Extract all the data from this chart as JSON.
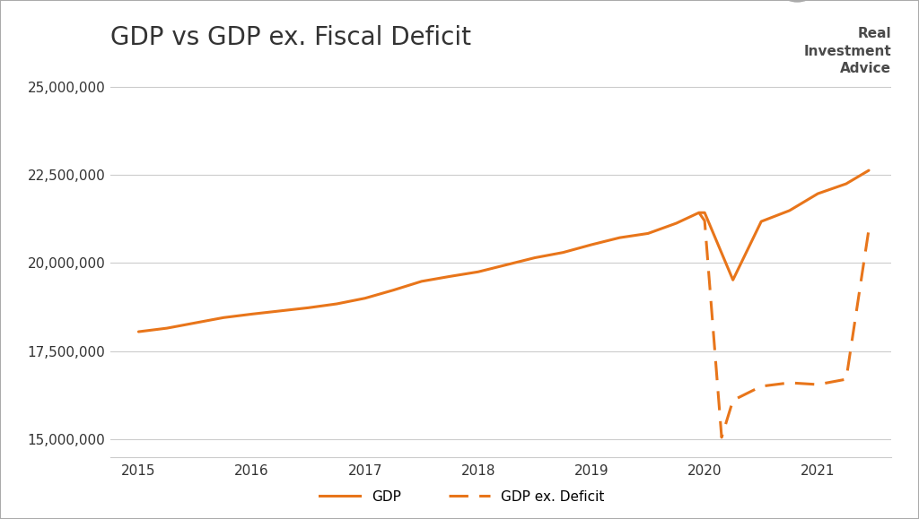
{
  "title": "GDP vs GDP ex. Fiscal Deficit",
  "line_color": "#E8751A",
  "background_color": "#FFFFFF",
  "grid_color": "#CCCCCC",
  "border_color": "#AAAAAA",
  "text_color": "#333333",
  "logo_text_color": "#555555",
  "ylim": [
    14500000,
    25700000
  ],
  "yticks": [
    15000000,
    17500000,
    20000000,
    22500000,
    25000000
  ],
  "xlim": [
    2014.75,
    2021.65
  ],
  "xticks": [
    2015,
    2016,
    2017,
    2018,
    2019,
    2020,
    2021
  ],
  "gdp_x": [
    2015.0,
    2015.25,
    2015.5,
    2015.75,
    2016.0,
    2016.25,
    2016.5,
    2016.75,
    2017.0,
    2017.25,
    2017.5,
    2017.75,
    2018.0,
    2018.25,
    2018.5,
    2018.75,
    2019.0,
    2019.25,
    2019.5,
    2019.75,
    2019.95,
    2020.0,
    2020.25,
    2020.5,
    2020.75,
    2021.0,
    2021.25,
    2021.45
  ],
  "gdp_y": [
    18050000,
    18150000,
    18300000,
    18450000,
    18550000,
    18640000,
    18730000,
    18840000,
    19000000,
    19230000,
    19480000,
    19620000,
    19750000,
    19950000,
    20150000,
    20300000,
    20520000,
    20720000,
    20840000,
    21130000,
    21430000,
    21430000,
    19520000,
    21180000,
    21490000,
    21970000,
    22250000,
    22630000
  ],
  "gdp_ex_x": [
    2019.95,
    2020.0,
    2020.15,
    2020.25,
    2020.5,
    2020.75,
    2021.0,
    2021.25,
    2021.45
  ],
  "gdp_ex_y": [
    21430000,
    21200000,
    15050000,
    16100000,
    16500000,
    16600000,
    16550000,
    16700000,
    20950000
  ],
  "legend_gdp": "GDP",
  "legend_gdp_ex": "GDP ex. Deficit",
  "title_fontsize": 20,
  "tick_fontsize": 11,
  "legend_fontsize": 11
}
